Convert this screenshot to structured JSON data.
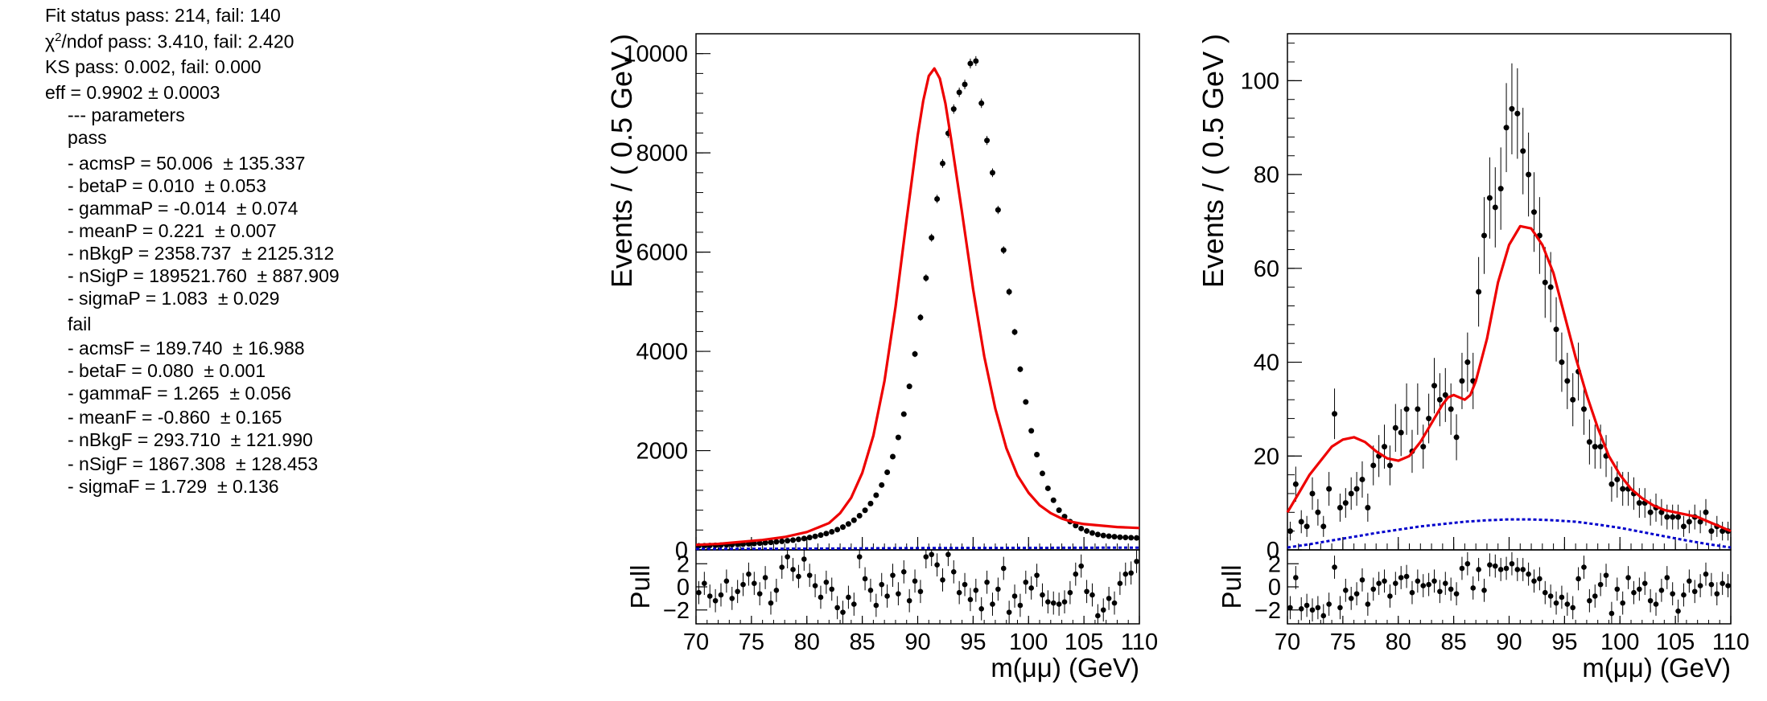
{
  "summary": {
    "fit_status": "Fit status pass: 214, fail: 140",
    "chi2_prefix": "χ",
    "chi2_sup": "2",
    "chi2_rest": "/ndof pass: 3.410, fail: 2.420",
    "ks": "KS pass: 0.002, fail: 0.000",
    "eff": "eff = 0.9902 ± 0.0003",
    "params_header": "--- parameters",
    "pass_label": "pass",
    "pass_params": [
      "- acmsP = 50.006  ± 135.337",
      "- betaP = 0.010  ± 0.053",
      "- gammaP = -0.014  ± 0.074",
      "- meanP = 0.221  ± 0.007",
      "- nBkgP = 2358.737  ± 2125.312",
      "- nSigP = 189521.760  ± 887.909",
      "- sigmaP = 1.083  ± 0.029"
    ],
    "fail_label": "fail",
    "fail_params": [
      "- acmsF = 189.740  ± 16.988",
      "- betaF = 0.080  ± 0.001",
      "- gammaF = 1.265  ± 0.056",
      "- meanF = -0.860  ± 0.165",
      "- nBkgF = 293.710  ± 121.990",
      "- nSigF = 1867.308  ± 128.453",
      "- sigmaF = 1.729  ± 0.136"
    ]
  },
  "colors": {
    "data": "#000000",
    "total_fit": "#ee0000",
    "background": "#0000cc",
    "frame": "#000000"
  },
  "chart_data": [
    {
      "type": "scatter",
      "name": "pass",
      "ylabel": "Events / ( 0.5 GeV )",
      "xlabel": "m(μμ) (GeV)",
      "xlim": [
        70,
        110
      ],
      "ylim": [
        0,
        10400
      ],
      "x_ticks": [
        "70",
        "75",
        "80",
        "85",
        "90",
        "95",
        "100",
        "105",
        "110"
      ],
      "y_ticks": [
        "0",
        "2000",
        "4000",
        "6000",
        "8000",
        "10000"
      ],
      "bin_width": 0.5,
      "x_first_bin_center": 70.25,
      "values": [
        80,
        84,
        88,
        92,
        96,
        100,
        105,
        110,
        116,
        122,
        128,
        135,
        143,
        152,
        162,
        172,
        184,
        197,
        212,
        229,
        249,
        272,
        298,
        329,
        365,
        408,
        460,
        522,
        597,
        688,
        798,
        934,
        1101,
        1307,
        1563,
        1879,
        2266,
        2735,
        3295,
        3947,
        4683,
        5478,
        6290,
        7071,
        7787,
        8394,
        8883,
        9220,
        9379,
        9800,
        9850,
        9000,
        8250,
        7600,
        6850,
        6040,
        5200,
        4390,
        3640,
        2980,
        2400,
        1920,
        1540,
        1240,
        1000,
        800,
        670,
        570,
        490,
        430,
        380,
        340,
        310,
        290,
        275,
        265,
        255,
        250,
        245,
        240
      ],
      "fit": [
        [
          70,
          100
        ],
        [
          72,
          120
        ],
        [
          74,
          160
        ],
        [
          76,
          200
        ],
        [
          78,
          260
        ],
        [
          80,
          360
        ],
        [
          82,
          540
        ],
        [
          83,
          740
        ],
        [
          84,
          1050
        ],
        [
          85,
          1550
        ],
        [
          86,
          2300
        ],
        [
          87,
          3400
        ],
        [
          88,
          4900
        ],
        [
          89,
          6650
        ],
        [
          90,
          8350
        ],
        [
          90.5,
          9050
        ],
        [
          91,
          9550
        ],
        [
          91.5,
          9700
        ],
        [
          92,
          9500
        ],
        [
          92.5,
          9000
        ],
        [
          93,
          8300
        ],
        [
          94,
          6800
        ],
        [
          95,
          5250
        ],
        [
          96,
          3900
        ],
        [
          97,
          2850
        ],
        [
          98,
          2050
        ],
        [
          99,
          1500
        ],
        [
          100,
          1150
        ],
        [
          101,
          900
        ],
        [
          102,
          740
        ],
        [
          103,
          630
        ],
        [
          104,
          560
        ],
        [
          105,
          520
        ],
        [
          106,
          500
        ],
        [
          107,
          480
        ],
        [
          108,
          460
        ],
        [
          109,
          450
        ],
        [
          110,
          440
        ]
      ],
      "background": [
        [
          70,
          20
        ],
        [
          80,
          25
        ],
        [
          90,
          35
        ],
        [
          100,
          40
        ],
        [
          110,
          45
        ]
      ],
      "pull": {
        "label": "Pull",
        "ylim": [
          -3.2,
          3.2
        ],
        "y_ticks": [
          "2",
          "0",
          "−2"
        ],
        "values": [
          -0.5,
          0.3,
          -0.8,
          -1.2,
          -0.7,
          0.5,
          -1.0,
          -0.4,
          0.2,
          1.1,
          0.3,
          -0.6,
          0.8,
          -1.4,
          -0.3,
          1.7,
          2.6,
          1.5,
          0.9,
          2.4,
          1.0,
          0.1,
          -0.9,
          0.4,
          -0.2,
          -1.8,
          -2.2,
          -0.9,
          -1.5,
          2.6,
          0.7,
          -0.3,
          -1.6,
          0.2,
          -0.8,
          1.0,
          -0.6,
          1.3,
          -1.2,
          0.5,
          -0.4,
          2.6,
          2.8,
          1.9,
          0.6,
          2.8,
          1.3,
          -0.5,
          0.2,
          -1.1,
          -0.3,
          -1.9,
          0.4,
          -1.5,
          -0.2,
          1.6,
          -2.2,
          -0.8,
          -1.6,
          0.4,
          -0.1,
          1.0,
          -0.7,
          -1.3,
          -1.4,
          -1.5,
          -1.3,
          -0.5,
          1.1,
          1.8,
          -0.4,
          -0.7,
          -2.5,
          -2.0,
          -1.0,
          -1.4,
          0.3,
          1.1,
          1.2,
          2.2
        ]
      }
    },
    {
      "type": "scatter",
      "name": "fail",
      "ylabel": "Events / ( 0.5 GeV )",
      "xlabel": "m(μμ) (GeV)",
      "xlim": [
        70,
        110
      ],
      "ylim": [
        0,
        110
      ],
      "x_ticks": [
        "70",
        "75",
        "80",
        "85",
        "90",
        "95",
        "100",
        "105",
        "110"
      ],
      "y_ticks": [
        "0",
        "20",
        "40",
        "60",
        "80",
        "100"
      ],
      "bin_width": 0.5,
      "x_first_bin_center": 70.25,
      "values": [
        4,
        14,
        6,
        5,
        12,
        8,
        5,
        13,
        29,
        9,
        10,
        12,
        13,
        15,
        9,
        18,
        20,
        22,
        18,
        26,
        25,
        30,
        21,
        30,
        22,
        28,
        35,
        32,
        33,
        30,
        24,
        36,
        40,
        36,
        55,
        67,
        75,
        73,
        77,
        90,
        94,
        93,
        85,
        80,
        72,
        67,
        57,
        56,
        47,
        40,
        36,
        32,
        38,
        30,
        23,
        22,
        22,
        20,
        14,
        15,
        13,
        13,
        12,
        10,
        10,
        8,
        9,
        8,
        7,
        7,
        7,
        5,
        6,
        7,
        6,
        8,
        4,
        5,
        4,
        4
      ],
      "fit": [
        [
          70,
          8
        ],
        [
          71,
          12
        ],
        [
          72,
          16
        ],
        [
          73,
          19
        ],
        [
          74,
          22
        ],
        [
          75,
          23.5
        ],
        [
          76,
          24
        ],
        [
          77,
          23
        ],
        [
          78,
          21
        ],
        [
          79,
          19.5
        ],
        [
          80,
          19
        ],
        [
          81,
          20
        ],
        [
          82,
          23
        ],
        [
          83,
          27
        ],
        [
          84,
          31
        ],
        [
          84.5,
          32.5
        ],
        [
          85,
          33
        ],
        [
          85.5,
          32.5
        ],
        [
          86,
          32
        ],
        [
          86.5,
          33
        ],
        [
          87,
          36
        ],
        [
          88,
          45
        ],
        [
          89,
          57
        ],
        [
          90,
          65
        ],
        [
          91,
          69
        ],
        [
          92,
          68.5
        ],
        [
          93,
          65
        ],
        [
          94,
          59
        ],
        [
          95,
          50
        ],
        [
          96,
          41
        ],
        [
          97,
          33
        ],
        [
          98,
          26
        ],
        [
          99,
          20
        ],
        [
          100,
          16
        ],
        [
          101,
          13
        ],
        [
          102,
          11
        ],
        [
          103,
          9.5
        ],
        [
          104,
          8.5
        ],
        [
          105,
          8
        ],
        [
          106,
          7.5
        ],
        [
          107,
          7
        ],
        [
          108,
          6
        ],
        [
          109,
          5
        ],
        [
          110,
          4
        ]
      ],
      "background": [
        [
          70,
          0.5
        ],
        [
          72,
          1.2
        ],
        [
          74,
          2
        ],
        [
          76,
          2.8
        ],
        [
          78,
          3.6
        ],
        [
          80,
          4.3
        ],
        [
          82,
          5
        ],
        [
          84,
          5.5
        ],
        [
          86,
          6
        ],
        [
          88,
          6.3
        ],
        [
          90,
          6.5
        ],
        [
          92,
          6.5
        ],
        [
          94,
          6.3
        ],
        [
          96,
          6
        ],
        [
          98,
          5.4
        ],
        [
          100,
          4.7
        ],
        [
          102,
          3.8
        ],
        [
          104,
          2.9
        ],
        [
          106,
          2
        ],
        [
          108,
          1.2
        ],
        [
          110,
          0.5
        ]
      ],
      "pull": {
        "label": "Pull",
        "ylim": [
          -3.2,
          3.2
        ],
        "y_ticks": [
          "2",
          "0",
          "−2"
        ],
        "values": [
          -1.8,
          0.8,
          -1.9,
          -1.6,
          -2.0,
          -1.8,
          -2.5,
          -1.5,
          1.7,
          -1.8,
          -0.3,
          -1.0,
          -0.6,
          0.6,
          -1.5,
          -0.2,
          0.3,
          0.5,
          -0.8,
          0.3,
          0.8,
          0.9,
          -0.5,
          0.5,
          0.1,
          0.2,
          0.5,
          -0.4,
          0.3,
          -0.2,
          -0.6,
          1.6,
          2.0,
          -0.1,
          1.5,
          -0.3,
          1.9,
          1.8,
          1.5,
          1.6,
          2.0,
          1.5,
          1.5,
          1.1,
          0.5,
          0.7,
          -0.5,
          -0.8,
          -1.4,
          -0.9,
          -1.5,
          -1.8,
          0.7,
          1.7,
          -1.2,
          -0.8,
          0.2,
          1.0,
          -2.3,
          -0.2,
          -1.4,
          0.8,
          -0.5,
          -0.2,
          0.3,
          -1.2,
          -1.5,
          -0.3,
          0.8,
          -0.6,
          -2.1,
          -0.7,
          0.5,
          -0.4,
          0.1,
          1.1,
          0.2,
          -0.6,
          0.3,
          0.1
        ]
      }
    }
  ]
}
